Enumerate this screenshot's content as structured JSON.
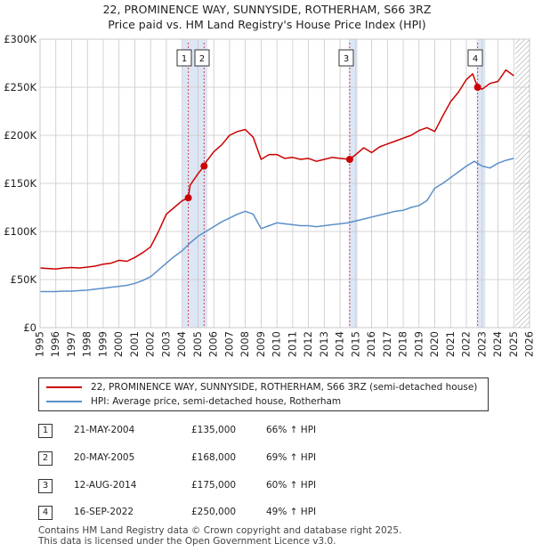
{
  "title": "22, PROMINENCE WAY, SUNNYSIDE, ROTHERHAM, S66 3RZ",
  "subtitle": "Price paid vs. HM Land Registry's House Price Index (HPI)",
  "legend": {
    "red_label": "22, PROMINENCE WAY, SUNNYSIDE, ROTHERHAM, S66 3RZ (semi-detached house)",
    "blue_label": "HPI: Average price, semi-detached house, Rotherham"
  },
  "colors": {
    "red": "#cc0000",
    "blue": "#5b8fc9",
    "shade": "#dde6f5",
    "grid": "#c8c8c8",
    "marker": "#cc0000"
  },
  "transactions": [
    {
      "num": "1",
      "date": "21-MAY-2004",
      "price": "£135,000",
      "hpi": "66% ↑ HPI"
    },
    {
      "num": "2",
      "date": "20-MAY-2005",
      "price": "£168,000",
      "hpi": "69% ↑ HPI"
    },
    {
      "num": "3",
      "date": "12-AUG-2014",
      "price": "£175,000",
      "hpi": "60% ↑ HPI"
    },
    {
      "num": "4",
      "date": "16-SEP-2022",
      "price": "£250,000",
      "hpi": "49% ↑ HPI"
    }
  ],
  "footer": {
    "line1": "Contains HM Land Registry data © Crown copyright and database right 2025.",
    "line2": "This data is licensed under the Open Government Licence v3.0."
  },
  "chart_data": {
    "type": "line",
    "title": "22, PROMINENCE WAY, SUNNYSIDE, ROTHERHAM, S66 3RZ",
    "subtitle": "Price paid vs. HM Land Registry's House Price Index (HPI)",
    "xlabel": "",
    "ylabel": "",
    "xlim": [
      1995,
      2026
    ],
    "ylim": [
      0,
      300000
    ],
    "grid": true,
    "legend_position": "below",
    "x_ticks": [
      1995,
      1996,
      1997,
      1998,
      1999,
      2000,
      2001,
      2002,
      2003,
      2004,
      2005,
      2006,
      2007,
      2008,
      2009,
      2010,
      2011,
      2012,
      2013,
      2014,
      2015,
      2016,
      2017,
      2018,
      2019,
      2020,
      2021,
      2022,
      2023,
      2024,
      2025,
      2026
    ],
    "x_tick_labels": [
      "1995",
      "1996",
      "1997",
      "1998",
      "1999",
      "2000",
      "2001",
      "2002",
      "2003",
      "2004",
      "2005",
      "2006",
      "2007",
      "2008",
      "2009",
      "2010",
      "2011",
      "2012",
      "2013",
      "2014",
      "2015",
      "2016",
      "2017",
      "2018",
      "2019",
      "2020",
      "2021",
      "2022",
      "2023",
      "2024",
      "2025",
      "2026"
    ],
    "y_ticks": [
      0,
      50000,
      100000,
      150000,
      200000,
      250000,
      300000
    ],
    "y_tick_labels": [
      "£0",
      "£50K",
      "£100K",
      "£150K",
      "£200K",
      "£250K",
      "£300K"
    ],
    "shaded_regions": [
      [
        2004.0,
        2005.6
      ],
      [
        2014.55,
        2015.1
      ],
      [
        2022.65,
        2023.2
      ]
    ],
    "hatched_region": [
      2025.1,
      2026
    ],
    "series": [
      {
        "name": "22, PROMINENCE WAY, SUNNYSIDE, ROTHERHAM, S66 3RZ (semi-detached house)",
        "color": "#cc0000",
        "x": [
          1995,
          1995.5,
          1996,
          1996.5,
          1997,
          1997.5,
          1998,
          1998.5,
          1999,
          1999.5,
          2000,
          2000.5,
          2001,
          2001.5,
          2002,
          2002.5,
          2003,
          2003.5,
          2004,
          2004.39,
          2004.5,
          2005,
          2005.39,
          2005.5,
          2006,
          2006.5,
          2007,
          2007.5,
          2008,
          2008.5,
          2009,
          2009.5,
          2010,
          2010.5,
          2011,
          2011.5,
          2012,
          2012.5,
          2013,
          2013.5,
          2014,
          2014.61,
          2015,
          2015.5,
          2016,
          2016.5,
          2017,
          2017.5,
          2018,
          2018.5,
          2019,
          2019.5,
          2020,
          2020.5,
          2021,
          2021.5,
          2022,
          2022.4,
          2022.71,
          2023,
          2023.5,
          2024,
          2024.5,
          2025
        ],
        "values": [
          62000,
          61500,
          61000,
          62000,
          62500,
          62000,
          63000,
          64000,
          66000,
          67000,
          70000,
          69000,
          73000,
          78000,
          84000,
          100000,
          118000,
          125000,
          132000,
          135000,
          148000,
          160000,
          168000,
          172000,
          183000,
          190000,
          200000,
          204000,
          206000,
          198000,
          175000,
          180000,
          180000,
          176000,
          177000,
          175000,
          176000,
          173000,
          175000,
          177000,
          176000,
          175000,
          180000,
          187000,
          182000,
          188000,
          191000,
          194000,
          197000,
          200000,
          205000,
          208000,
          204000,
          220000,
          235000,
          245000,
          258000,
          264000,
          250000,
          248000,
          254000,
          256000,
          268000,
          262000
        ]
      },
      {
        "name": "HPI: Average price, semi-detached house, Rotherham",
        "color": "#5b8fc9",
        "x": [
          1995,
          1995.5,
          1996,
          1996.5,
          1997,
          1997.5,
          1998,
          1998.5,
          1999,
          1999.5,
          2000,
          2000.5,
          2001,
          2001.5,
          2002,
          2002.5,
          2003,
          2003.5,
          2004,
          2004.5,
          2005,
          2005.5,
          2006,
          2006.5,
          2007,
          2007.5,
          2008,
          2008.5,
          2009,
          2009.5,
          2010,
          2010.5,
          2011,
          2011.5,
          2012,
          2012.5,
          2013,
          2013.5,
          2014,
          2014.5,
          2015,
          2015.5,
          2016,
          2016.5,
          2017,
          2017.5,
          2018,
          2018.5,
          2019,
          2019.5,
          2020,
          2020.5,
          2021,
          2021.5,
          2022,
          2022.5,
          2023,
          2023.5,
          2024,
          2024.5,
          2025
        ],
        "values": [
          37500,
          37500,
          37500,
          38000,
          38000,
          38500,
          39000,
          40000,
          41000,
          42000,
          43000,
          44000,
          46000,
          49000,
          53000,
          60000,
          67000,
          74000,
          80000,
          88000,
          95000,
          100000,
          105000,
          110000,
          114000,
          118000,
          121000,
          118000,
          103000,
          106000,
          109000,
          108000,
          107000,
          106000,
          106000,
          105000,
          106000,
          107000,
          108000,
          109000,
          111000,
          113000,
          115000,
          117000,
          119000,
          121000,
          122000,
          125000,
          127000,
          132000,
          145000,
          150000,
          156000,
          162000,
          168000,
          173000,
          168000,
          166000,
          171000,
          174000,
          176000
        ]
      }
    ],
    "markers": [
      {
        "label": "1",
        "x": 2004.39,
        "y": 135000
      },
      {
        "label": "2",
        "x": 2005.39,
        "y": 168000
      },
      {
        "label": "3",
        "x": 2014.61,
        "y": 175000
      },
      {
        "label": "4",
        "x": 2022.71,
        "y": 250000
      }
    ]
  }
}
